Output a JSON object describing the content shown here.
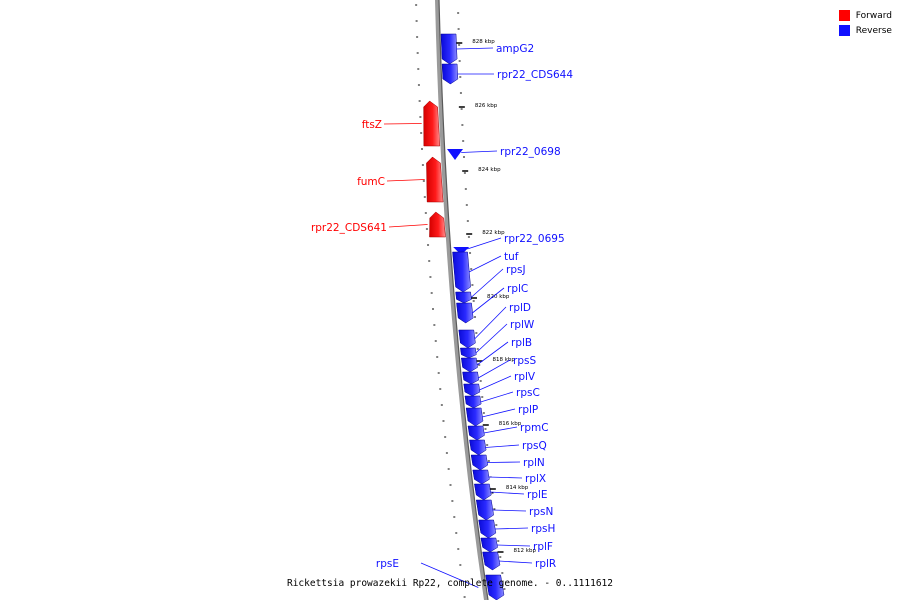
{
  "legend": {
    "forward_label": "Forward",
    "reverse_label": "Reverse",
    "forward_color": "#ff0000",
    "reverse_color": "#1010ff"
  },
  "caption": "Rickettsia prowazekii Rp22, complete genome. - 0..1111612",
  "scale_unit": "kbp",
  "scale_ticks": [
    828,
    826,
    824,
    822,
    820,
    818,
    816,
    814,
    812
  ],
  "genes": [
    {
      "name": "ampG2",
      "strand": "reverse"
    },
    {
      "name": "rpr22_CDS644",
      "strand": "reverse"
    },
    {
      "name": "ftsZ",
      "strand": "forward"
    },
    {
      "name": "rpr22_0698",
      "strand": "reverse"
    },
    {
      "name": "fumC",
      "strand": "forward"
    },
    {
      "name": "rpr22_CDS641",
      "strand": "forward"
    },
    {
      "name": "rpr22_0695",
      "strand": "reverse"
    },
    {
      "name": "tuf",
      "strand": "reverse"
    },
    {
      "name": "rpsJ",
      "strand": "reverse"
    },
    {
      "name": "rplC",
      "strand": "reverse"
    },
    {
      "name": "rplD",
      "strand": "reverse"
    },
    {
      "name": "rplW",
      "strand": "reverse"
    },
    {
      "name": "rplB",
      "strand": "reverse"
    },
    {
      "name": "rpsS",
      "strand": "reverse"
    },
    {
      "name": "rplV",
      "strand": "reverse"
    },
    {
      "name": "rpsC",
      "strand": "reverse"
    },
    {
      "name": "rplP",
      "strand": "reverse"
    },
    {
      "name": "rpmC",
      "strand": "reverse"
    },
    {
      "name": "rpsQ",
      "strand": "reverse"
    },
    {
      "name": "rplN",
      "strand": "reverse"
    },
    {
      "name": "rplX",
      "strand": "reverse"
    },
    {
      "name": "rplE",
      "strand": "reverse"
    },
    {
      "name": "rpsN",
      "strand": "reverse"
    },
    {
      "name": "rpsH",
      "strand": "reverse"
    },
    {
      "name": "rplF",
      "strand": "reverse"
    },
    {
      "name": "rplR",
      "strand": "reverse"
    },
    {
      "name": "rpsE",
      "strand": "reverse"
    }
  ]
}
